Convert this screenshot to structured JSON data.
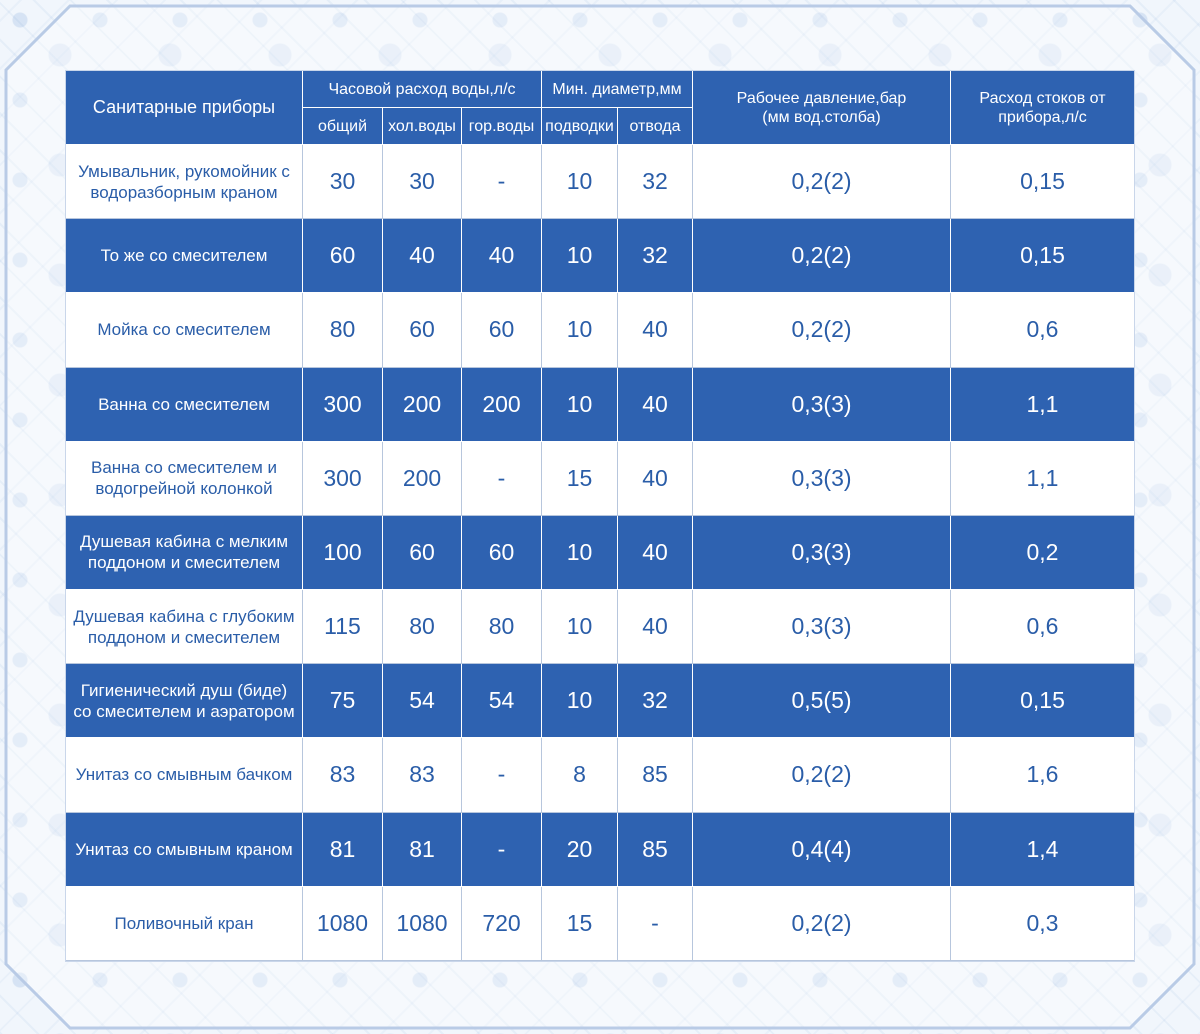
{
  "header": {
    "col_device": "Санитарные приборы",
    "col_hourly_flow": "Часовой расход воды,л/с",
    "col_min_diameter": "Мин. диаметр,мм",
    "col_pressure": "Рабочее давление,бар (мм вод.столба)",
    "col_drain": "Расход стоков от прибора,л/с",
    "sub_total": "общий",
    "sub_cold": "хол.воды",
    "sub_hot": "гор.воды",
    "sub_supply": "подводки",
    "sub_outlet": "отвода"
  },
  "rows": [
    {
      "name": "Умывальник, рукомойник с водоразборным краном",
      "total": "30",
      "cold": "30",
      "hot": "-",
      "supply": "10",
      "outlet": "32",
      "pressure": "0,2(2)",
      "drain": "0,15"
    },
    {
      "name": "То же со смесителем",
      "total": "60",
      "cold": "40",
      "hot": "40",
      "supply": "10",
      "outlet": "32",
      "pressure": "0,2(2)",
      "drain": "0,15"
    },
    {
      "name": "Мойка со смесителем",
      "total": "80",
      "cold": "60",
      "hot": "60",
      "supply": "10",
      "outlet": "40",
      "pressure": "0,2(2)",
      "drain": "0,6"
    },
    {
      "name": "Ванна со смесителем",
      "total": "300",
      "cold": "200",
      "hot": "200",
      "supply": "10",
      "outlet": "40",
      "pressure": "0,3(3)",
      "drain": "1,1"
    },
    {
      "name": "Ванна со смесителем и водогрейной колонкой",
      "total": "300",
      "cold": "200",
      "hot": "-",
      "supply": "15",
      "outlet": "40",
      "pressure": "0,3(3)",
      "drain": "1,1"
    },
    {
      "name": "Душевая кабина с мелким поддоном и смесителем",
      "total": "100",
      "cold": "60",
      "hot": "60",
      "supply": "10",
      "outlet": "40",
      "pressure": "0,3(3)",
      "drain": "0,2"
    },
    {
      "name": "Душевая кабина с глубоким поддоном и смесителем",
      "total": "115",
      "cold": "80",
      "hot": "80",
      "supply": "10",
      "outlet": "40",
      "pressure": "0,3(3)",
      "drain": "0,6"
    },
    {
      "name": "Гигиенический душ (биде) со смесителем и аэратором",
      "total": "75",
      "cold": "54",
      "hot": "54",
      "supply": "10",
      "outlet": "32",
      "pressure": "0,5(5)",
      "drain": "0,15"
    },
    {
      "name": "Унитаз со смывным бачком",
      "total": "83",
      "cold": "83",
      "hot": "-",
      "supply": "8",
      "outlet": "85",
      "pressure": "0,2(2)",
      "drain": "1,6"
    },
    {
      "name": "Унитаз со смывным краном",
      "total": "81",
      "cold": "81",
      "hot": "-",
      "supply": "20",
      "outlet": "85",
      "pressure": "0,4(4)",
      "drain": "1,4"
    },
    {
      "name": "Поливочный кран",
      "total": "1080",
      "cold": "1080",
      "hot": "720",
      "supply": "15",
      "outlet": "-",
      "pressure": "0,2(2)",
      "drain": "0,3"
    }
  ],
  "colors": {
    "header_blue": "#2e62b1",
    "text_blue": "#2a5da8",
    "white": "#ffffff"
  }
}
